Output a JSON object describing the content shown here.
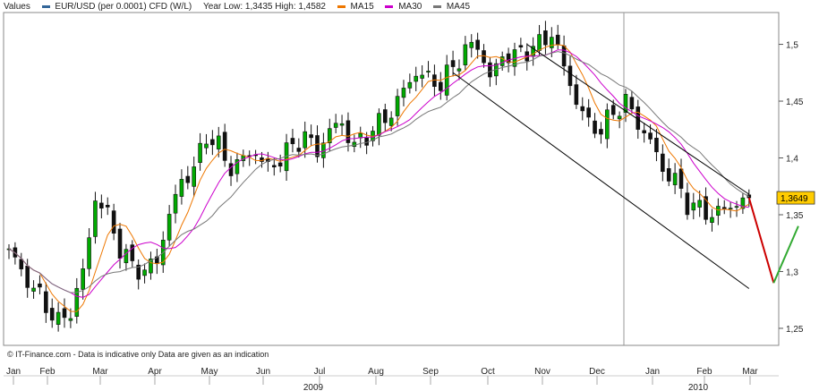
{
  "legend": {
    "values_label": "Values",
    "instrument": "EUR/USD (per 0.0001) CFD (W/L)",
    "year_range": "Year Low: 1,3435 High: 1,4582",
    "ma15": "MA15",
    "ma30": "MA30",
    "ma45": "MA45"
  },
  "credit": "© IT-Finance.com - Data is indicative only Data are given as an indication",
  "colors": {
    "instrument": "#336699",
    "ma15": "#ee7700",
    "ma30": "#cc00cc",
    "ma45": "#777777",
    "candle_up": "#00aa00",
    "candle_down": "#111111",
    "channel": "#000000",
    "projection_down": "#cc0000",
    "projection_up": "#33aa33",
    "last_price_bg": "#ffcc00"
  },
  "chart_data": {
    "type": "candlestick",
    "title": "",
    "ylim": [
      1.235,
      1.528
    ],
    "grid": false,
    "y_ticks": [
      1.25,
      1.3,
      1.35,
      1.4,
      1.45,
      1.5
    ],
    "y_tick_labels": [
      "1,25",
      "1,3",
      "1,35",
      "1,4",
      "1,45",
      "1,5"
    ],
    "month_labels": [
      "Jan",
      "Feb",
      "Mar",
      "Apr",
      "May",
      "Jun",
      "Jul",
      "Aug",
      "Sep",
      "Oct",
      "Nov",
      "Dec",
      "Jan",
      "Feb",
      "Mar"
    ],
    "year_labels": [
      "2009",
      "2010"
    ],
    "last_price": 1.3649,
    "last_price_label": "1,3649",
    "close_anchors": [
      [
        0,
        1.32
      ],
      [
        2,
        1.3
      ],
      [
        4,
        1.285
      ],
      [
        6,
        1.27
      ],
      [
        8,
        1.255
      ],
      [
        10,
        1.265
      ],
      [
        12,
        1.3
      ],
      [
        13,
        1.33
      ],
      [
        14,
        1.365
      ],
      [
        16,
        1.35
      ],
      [
        18,
        1.32
      ],
      [
        20,
        1.305
      ],
      [
        22,
        1.3
      ],
      [
        24,
        1.31
      ],
      [
        26,
        1.35
      ],
      [
        28,
        1.38
      ],
      [
        30,
        1.39
      ],
      [
        32,
        1.42
      ],
      [
        34,
        1.41
      ],
      [
        36,
        1.39
      ],
      [
        38,
        1.4
      ],
      [
        40,
        1.405
      ],
      [
        42,
        1.39
      ],
      [
        44,
        1.4
      ],
      [
        46,
        1.41
      ],
      [
        48,
        1.42
      ],
      [
        50,
        1.405
      ],
      [
        52,
        1.425
      ],
      [
        54,
        1.43
      ],
      [
        56,
        1.41
      ],
      [
        58,
        1.42
      ],
      [
        60,
        1.43
      ],
      [
        62,
        1.44
      ],
      [
        64,
        1.46
      ],
      [
        66,
        1.475
      ],
      [
        68,
        1.47
      ],
      [
        70,
        1.465
      ],
      [
        72,
        1.48
      ],
      [
        74,
        1.495
      ],
      [
        76,
        1.5
      ],
      [
        78,
        1.47
      ],
      [
        80,
        1.49
      ],
      [
        82,
        1.49
      ],
      [
        84,
        1.495
      ],
      [
        86,
        1.5
      ],
      [
        88,
        1.51
      ],
      [
        90,
        1.48
      ],
      [
        92,
        1.45
      ],
      [
        94,
        1.43
      ],
      [
        96,
        1.425
      ],
      [
        98,
        1.44
      ],
      [
        100,
        1.45
      ],
      [
        102,
        1.43
      ],
      [
        104,
        1.415
      ],
      [
        106,
        1.39
      ],
      [
        108,
        1.38
      ],
      [
        110,
        1.36
      ],
      [
        112,
        1.355
      ],
      [
        114,
        1.35
      ],
      [
        116,
        1.355
      ],
      [
        118,
        1.36
      ],
      [
        120,
        1.3649
      ]
    ],
    "channel_upper": [
      [
        84,
        1.5
      ],
      [
        120,
        1.368
      ]
    ],
    "channel_lower": [
      [
        72,
        1.475
      ],
      [
        120,
        1.285
      ]
    ],
    "projection": [
      [
        120,
        1.3649
      ],
      [
        124,
        1.29
      ],
      [
        128,
        1.34
      ]
    ],
    "ma_periods": {
      "ma15": 15,
      "ma30": 30,
      "ma45": 45
    }
  }
}
